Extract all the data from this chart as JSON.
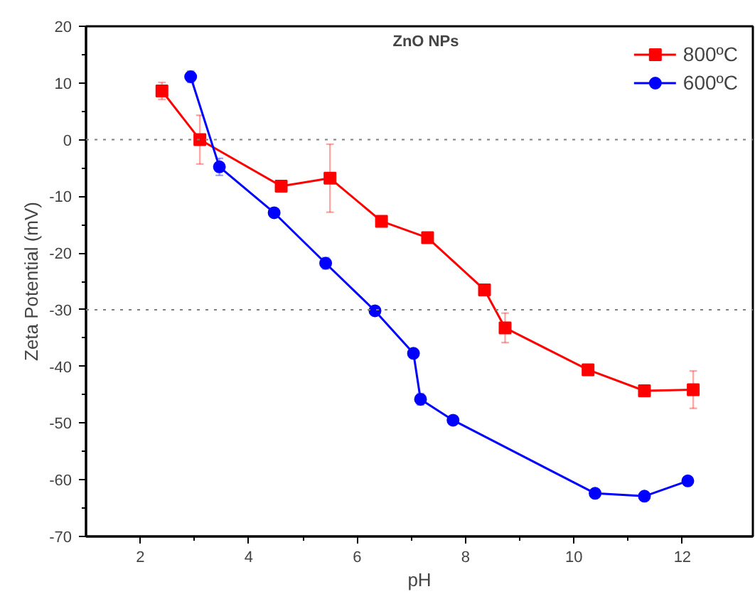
{
  "chart_data": {
    "type": "line",
    "title": "ZnO NPs",
    "xlabel": "pH",
    "ylabel": "Zeta Potential (mV)",
    "xlim": [
      1,
      13.3
    ],
    "ylim": [
      -70,
      20
    ],
    "xticks": [
      2,
      4,
      6,
      8,
      10,
      12
    ],
    "yticks": [
      -70,
      -60,
      -50,
      -40,
      -30,
      -20,
      -10,
      0,
      10,
      20
    ],
    "grid": false,
    "legend": "top right",
    "line_style": "solid",
    "ref_lines": [
      {
        "axis": "y",
        "value": 0,
        "color": "#808080",
        "line_style": "dotted"
      },
      {
        "axis": "y",
        "value": -30,
        "color": "#808080",
        "line_style": "dotted"
      }
    ],
    "series": [
      {
        "name": "800ºC",
        "color": "#ff0000",
        "marker": "square",
        "x": [
          2.4,
          3.1,
          4.6,
          5.5,
          6.45,
          7.3,
          8.35,
          8.73,
          10.26,
          11.3,
          12.2
        ],
        "values": [
          8.6,
          0,
          -8.2,
          -6.8,
          -14.4,
          -17.3,
          -26.5,
          -33.2,
          -40.6,
          -44.3,
          -44.1
        ],
        "errors": [
          1.5,
          4.3,
          null,
          6,
          null,
          null,
          null,
          2.6,
          null,
          1,
          3.3
        ]
      },
      {
        "name": "600ºC",
        "color": "#0000ff",
        "marker": "circle",
        "x": [
          2.93,
          3.46,
          4.47,
          5.42,
          6.33,
          7.04,
          7.17,
          7.77,
          10.39,
          11.3,
          12.1
        ],
        "values": [
          11.1,
          -4.8,
          -12.9,
          -21.8,
          -30.2,
          -37.7,
          -45.8,
          -49.5,
          -62.4,
          -62.9,
          -60.2
        ],
        "errors": [
          1,
          1.5,
          0.7,
          1,
          0.7,
          null,
          1,
          null,
          null,
          null,
          null
        ]
      }
    ]
  }
}
